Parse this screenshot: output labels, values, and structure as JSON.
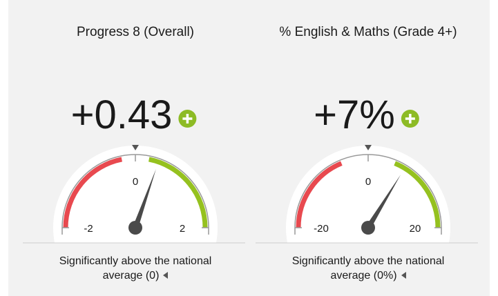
{
  "chart_data": [
    {
      "type": "gauge",
      "title": "Progress 8 (Overall)",
      "values": [
        0.43
      ],
      "value_labels": [
        "+0.43"
      ],
      "xlim": [
        -2,
        2
      ],
      "xticks": [
        -2,
        0,
        2
      ],
      "bands": [
        {
          "color": "#e8494f",
          "range": [
            -2,
            -0.25
          ]
        },
        {
          "color": "#95c11f",
          "range": [
            0.25,
            2
          ]
        }
      ],
      "caption": "Significantly above the national average (0)"
    },
    {
      "type": "gauge",
      "title": "% English & Maths (Grade 4+)",
      "values": [
        7
      ],
      "value_labels": [
        "+7%"
      ],
      "xlim": [
        -20,
        20
      ],
      "xticks": [
        -20,
        0,
        20
      ],
      "bands": [
        {
          "color": "#e8494f",
          "range": [
            -20,
            -5
          ]
        },
        {
          "color": "#95c11f",
          "range": [
            5,
            20
          ]
        }
      ],
      "caption": "Significantly above the national average (0%)"
    }
  ]
}
